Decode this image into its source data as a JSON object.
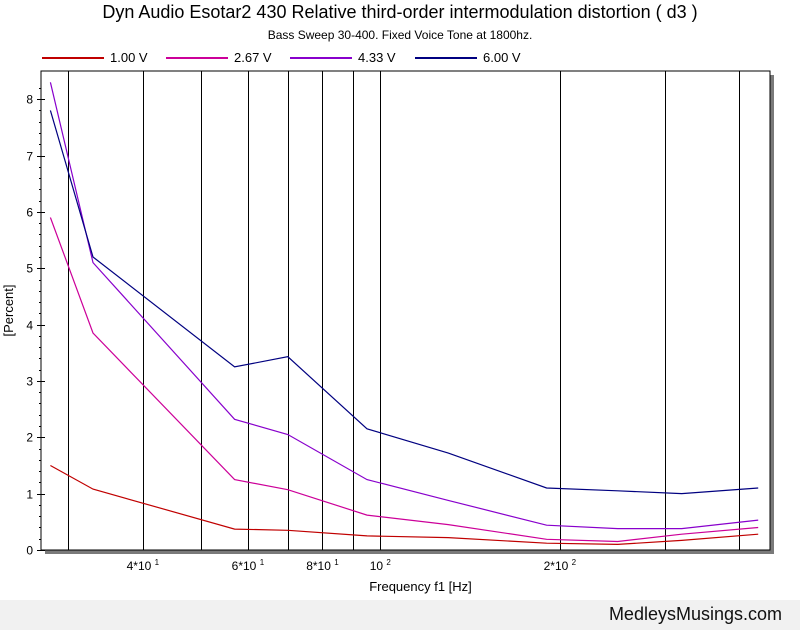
{
  "chart_data": {
    "type": "line",
    "title": "Dyn Audio Esotar2 430 Relative third-order intermodulation distortion  ( d3 )",
    "subtitle": "Bass Sweep 30-400.  Fixed Voice Tone at 1800hz.",
    "xlabel": "Frequency f1  [Hz]",
    "ylabel": "[Percent]",
    "x_scale": "log",
    "xlim": [
      27,
      450
    ],
    "ylim": [
      0,
      8.5
    ],
    "y_ticks": [
      "0",
      "1",
      "2",
      "3",
      "4",
      "5",
      "6",
      "7",
      "8"
    ],
    "x_tick_labels": [
      {
        "value": 40,
        "label": "4*10",
        "exp": "1"
      },
      {
        "value": 60,
        "label": "6*10",
        "exp": "1"
      },
      {
        "value": 80,
        "label": "8*10",
        "exp": "1"
      },
      {
        "value": 100,
        "label": "10",
        "exp": "2"
      },
      {
        "value": 200,
        "label": "2*10",
        "exp": "2"
      }
    ],
    "x_gridlines": [
      30,
      40,
      50,
      60,
      70,
      80,
      90,
      100,
      200,
      300,
      400
    ],
    "x": [
      28,
      33,
      57,
      70,
      95,
      130,
      190,
      250,
      320,
      430
    ],
    "series": [
      {
        "name": "1.00 V",
        "color": "#c00000",
        "values": [
          1.5,
          1.08,
          0.37,
          0.35,
          0.25,
          0.22,
          0.12,
          0.1,
          0.17,
          0.28
        ]
      },
      {
        "name": "2.67 V",
        "color": "#cc0099",
        "values": [
          5.9,
          3.85,
          1.25,
          1.07,
          0.62,
          0.45,
          0.19,
          0.15,
          0.28,
          0.4
        ]
      },
      {
        "name": "4.33 V",
        "color": "#8800cc",
        "values": [
          8.3,
          5.1,
          2.32,
          2.05,
          1.25,
          0.88,
          0.44,
          0.38,
          0.38,
          0.53
        ]
      },
      {
        "name": "6.00 V",
        "color": "#000080",
        "values": [
          7.8,
          5.2,
          3.25,
          3.43,
          2.15,
          1.72,
          1.1,
          1.05,
          1.0,
          1.1
        ]
      }
    ]
  },
  "footer": {
    "text": "MedleysMusings.com"
  }
}
